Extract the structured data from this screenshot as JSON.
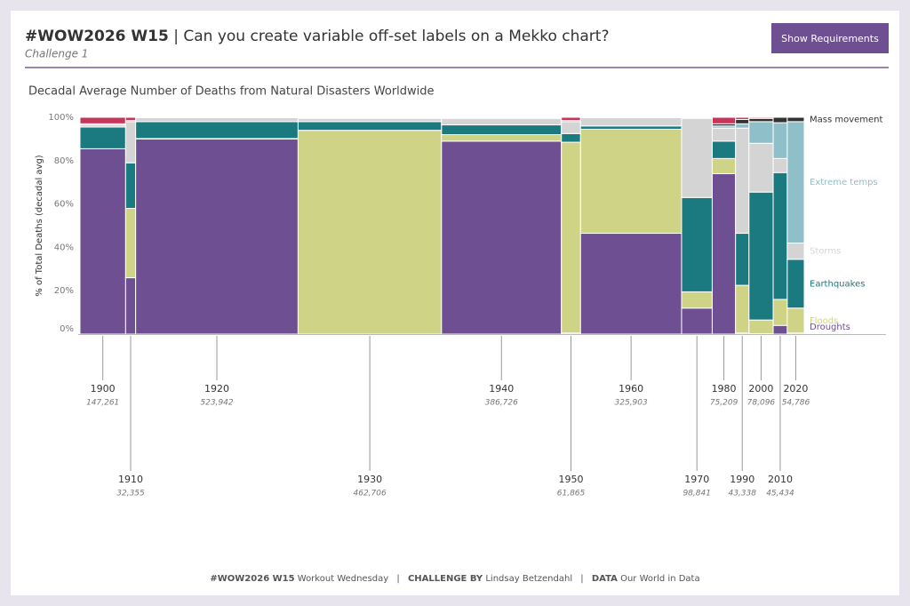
{
  "header": {
    "tag": "#WOW2026 W15",
    "title": "| Can you create variable off-set labels on a Mekko chart?",
    "subtitle": "Challenge 1",
    "button": "Show Requirements"
  },
  "footer": {
    "separator": "|",
    "items": [
      {
        "bold": "#WOW2026 W15",
        "text": "Workout Wednesday"
      },
      {
        "bold": "CHALLENGE BY",
        "text": "Lindsay Betzendahl"
      },
      {
        "bold": "DATA",
        "text": "Our World in Data"
      }
    ]
  },
  "chart_data": {
    "type": "mekko",
    "title": "Decadal Average Number of Deaths from Natural Disasters Worldwide",
    "y_label": "% of Total Deaths (decadal avg)",
    "categories": [
      "1900",
      "1910",
      "1920",
      "1930",
      "1940",
      "1950",
      "1960",
      "1970",
      "1980",
      "1990",
      "2000",
      "2010",
      "2020"
    ],
    "totals": [
      147261,
      32355,
      523942,
      462706,
      386726,
      61865,
      325903,
      98841,
      75209,
      43338,
      78096,
      45434,
      54786
    ],
    "total_labels": [
      "147,261",
      "32,355",
      "523,942",
      "462,706",
      "386,726",
      "61,865",
      "325,903",
      "98,841",
      "75,209",
      "43,338",
      "78,096",
      "45,434",
      "54,786"
    ],
    "ylim": [
      0,
      100
    ],
    "yticks": [
      {
        "value": 0,
        "label": "0%"
      },
      {
        "value": 20,
        "label": "20%"
      },
      {
        "value": 40,
        "label": "40%"
      },
      {
        "value": 60,
        "label": "60%"
      },
      {
        "value": 80,
        "label": "80%"
      },
      {
        "value": 100,
        "label": "100%"
      }
    ],
    "series": [
      {
        "name": "Droughts",
        "color": "#6e4f91",
        "values": [
          85.5,
          26,
          90,
          0,
          89,
          0.5,
          46.5,
          12,
          74,
          0.5,
          0.2,
          4,
          0.5
        ]
      },
      {
        "name": "Floods",
        "color": "#cfd386",
        "values": [
          0,
          32,
          0.2,
          94,
          3,
          88,
          48,
          7.5,
          7,
          22,
          6.3,
          12,
          11.5
        ]
      },
      {
        "name": "Earthquakes",
        "color": "#1a7a80",
        "values": [
          10,
          21,
          7.8,
          4,
          4.5,
          4,
          1.5,
          43.5,
          8,
          24,
          59,
          58.5,
          22.5
        ]
      },
      {
        "name": "Storms",
        "color": "#d4d4d4",
        "values": [
          1,
          19,
          1.8,
          1.5,
          3,
          5.5,
          3.8,
          36.5,
          6,
          48.5,
          22.5,
          6.5,
          7.5
        ]
      },
      {
        "name": "Extreme temps",
        "color": "#8fbfc9",
        "values": [
          0,
          0,
          0,
          0,
          0,
          0,
          0,
          0.2,
          1,
          2,
          10,
          16.5,
          56
        ]
      },
      {
        "name": "Mass movement",
        "color": "#333333",
        "values": [
          0.5,
          0.5,
          0.2,
          0.3,
          0.3,
          0.5,
          0.2,
          0.3,
          1,
          2,
          1.5,
          2.5,
          2
        ]
      },
      {
        "name": null,
        "color": "#c8355a",
        "values": [
          3,
          1.5,
          0,
          0.2,
          0.2,
          1.5,
          0,
          0,
          3,
          1,
          0.5,
          0,
          0
        ]
      }
    ]
  }
}
